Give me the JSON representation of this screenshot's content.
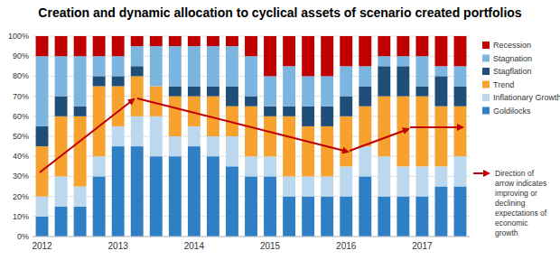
{
  "chart_data": {
    "type": "bar",
    "title": "Creation and dynamic allocation to cyclical assets of scenario created portfolios",
    "stacked": true,
    "grid": true,
    "legend": "right",
    "categories": [
      "2012",
      null,
      null,
      null,
      "2013",
      null,
      null,
      null,
      "2014",
      null,
      null,
      null,
      "2015",
      null,
      null,
      null,
      "2016",
      null,
      null,
      null,
      "2017",
      null,
      null
    ],
    "ylim": [
      0,
      100
    ],
    "yticks": [
      {
        "value": 0,
        "label": "0%"
      },
      {
        "value": 10,
        "label": "10%"
      },
      {
        "value": 20,
        "label": "20%"
      },
      {
        "value": 30,
        "label": "30%"
      },
      {
        "value": 40,
        "label": "40%"
      },
      {
        "value": 50,
        "label": "50%"
      },
      {
        "value": 60,
        "label": "60%"
      },
      {
        "value": 70,
        "label": "70%"
      },
      {
        "value": 80,
        "label": "80%"
      },
      {
        "value": 90,
        "label": "90%"
      },
      {
        "value": 100,
        "label": "100%"
      }
    ],
    "series": [
      {
        "name": "Goldilocks",
        "color": "#2e7fc6",
        "values": [
          10,
          15,
          15,
          30,
          45,
          45,
          40,
          40,
          45,
          40,
          35,
          30,
          30,
          20,
          20,
          20,
          20,
          30,
          20,
          20,
          20,
          25,
          25
        ]
      },
      {
        "name": "Inflationary Growth",
        "color": "#bcd8ef",
        "values": [
          10,
          15,
          10,
          10,
          10,
          15,
          20,
          10,
          10,
          10,
          15,
          10,
          10,
          10,
          10,
          10,
          15,
          15,
          20,
          15,
          15,
          10,
          15
        ]
      },
      {
        "name": "Trend",
        "color": "#f7a12e",
        "values": [
          25,
          30,
          35,
          35,
          20,
          20,
          15,
          20,
          15,
          20,
          15,
          25,
          20,
          30,
          25,
          25,
          25,
          20,
          30,
          35,
          35,
          30,
          25
        ]
      },
      {
        "name": "Stagflation",
        "color": "#1f4e79",
        "values": [
          10,
          10,
          5,
          5,
          5,
          5,
          0,
          5,
          5,
          5,
          10,
          5,
          5,
          5,
          10,
          10,
          10,
          10,
          15,
          15,
          5,
          15,
          10
        ]
      },
      {
        "name": "Stagnation",
        "color": "#7db5e1",
        "values": [
          35,
          20,
          25,
          10,
          10,
          10,
          20,
          20,
          20,
          20,
          20,
          20,
          15,
          20,
          15,
          15,
          15,
          10,
          5,
          5,
          15,
          5,
          10
        ]
      },
      {
        "name": "Recession",
        "color": "#c00000",
        "values": [
          10,
          10,
          10,
          10,
          10,
          5,
          5,
          5,
          5,
          5,
          5,
          10,
          20,
          15,
          20,
          20,
          15,
          15,
          10,
          10,
          10,
          15,
          15
        ]
      }
    ],
    "annotation_lines": [
      "Direction of",
      "arrow indicates",
      "improving or",
      "declining",
      "expectations of",
      "economic",
      "growth"
    ]
  }
}
